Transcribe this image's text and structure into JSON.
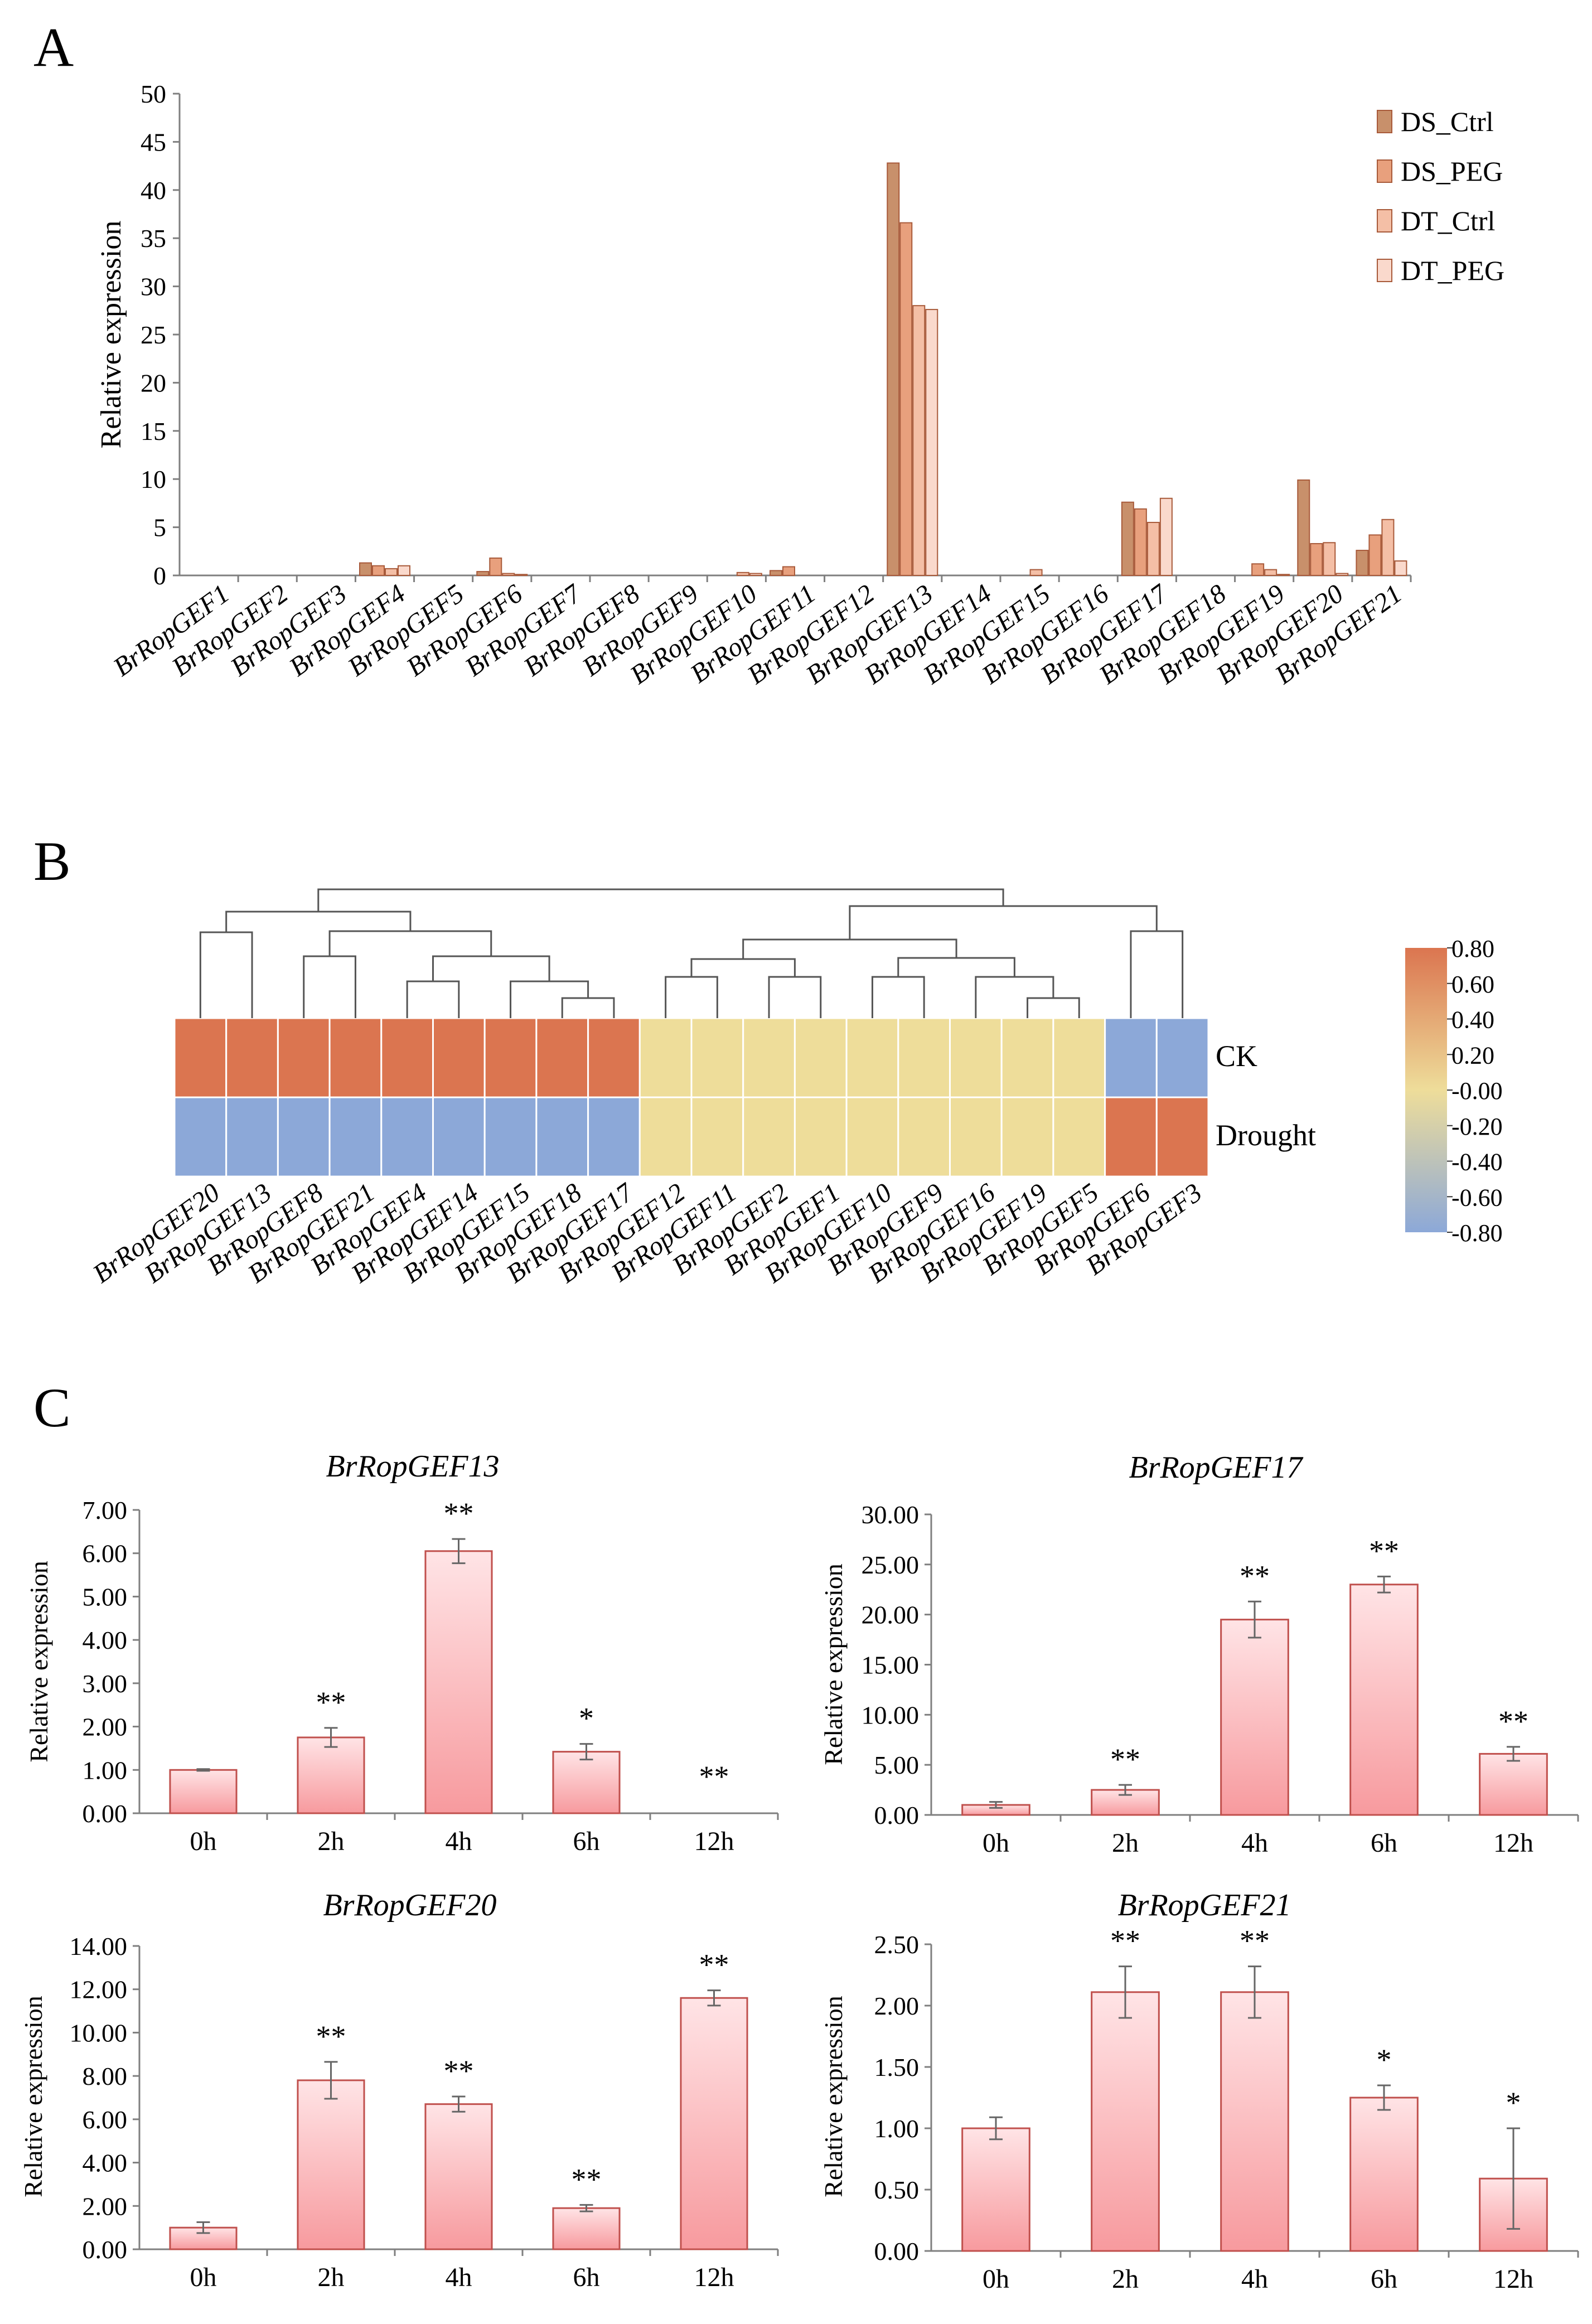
{
  "panels": {
    "a": "A",
    "b": "B",
    "c": "C"
  },
  "colors": {
    "ds_ctrl": "#C8906B",
    "ds_peg": "#E8A07D",
    "dt_ctrl": "#F4BFA6",
    "dt_peg": "#FAD9CC",
    "bar_edge": "#A85A3A",
    "heat_high": "#DB7550",
    "heat_mid": "#EEDD9A",
    "heat_low": "#8CA8D8",
    "qpcr_top": "#FFE4E6",
    "qpcr_bottom": "#F79A9E",
    "qpcr_edge": "#C0504D",
    "error": "#666666"
  },
  "chart_data": [
    {
      "id": "A",
      "type": "bar",
      "ylabel": "Relative expression",
      "ylim": [
        0,
        50
      ],
      "yticks": [
        "0",
        "5",
        "10",
        "15",
        "20",
        "25",
        "30",
        "35",
        "40",
        "45",
        "50"
      ],
      "categories": [
        "BrRopGEF1",
        "BrRopGEF2",
        "BrRopGEF3",
        "BrRopGEF4",
        "BrRopGEF5",
        "BrRopGEF6",
        "BrRopGEF7",
        "BrRopGEF8",
        "BrRopGEF9",
        "BrRopGEF10",
        "BrRopGEF11",
        "BrRopGEF12",
        "BrRopGEF13",
        "BrRopGEF14",
        "BrRopGEF15",
        "BrRopGEF16",
        "BrRopGEF17",
        "BrRopGEF18",
        "BrRopGEF19",
        "BrRopGEF20",
        "BrRopGEF21"
      ],
      "legend_position": "top-right",
      "series": [
        {
          "name": "DS_Ctrl",
          "values": [
            0,
            0,
            0,
            1.3,
            0,
            0.4,
            0,
            0,
            0,
            0,
            0.5,
            0,
            42.8,
            0,
            0,
            0,
            7.6,
            0,
            0,
            9.9,
            2.6
          ]
        },
        {
          "name": "DS_PEG",
          "values": [
            0,
            0,
            0,
            1.0,
            0,
            1.8,
            0,
            0,
            0,
            0,
            0.9,
            0,
            36.6,
            0,
            0,
            0,
            6.9,
            0,
            1.2,
            3.3,
            4.2
          ]
        },
        {
          "name": "DT_Ctrl",
          "values": [
            0,
            0,
            0,
            0.7,
            0,
            0.2,
            0,
            0,
            0,
            0.3,
            0,
            0,
            28.0,
            0,
            0.6,
            0,
            5.5,
            0,
            0.6,
            3.4,
            5.8
          ]
        },
        {
          "name": "DT_PEG",
          "values": [
            0,
            0,
            0,
            1.0,
            0,
            0.1,
            0,
            0,
            0,
            0.2,
            0,
            0,
            27.6,
            0,
            0,
            0,
            8.0,
            0,
            0.1,
            0.2,
            1.5
          ]
        }
      ]
    },
    {
      "id": "B",
      "type": "heatmap",
      "rows": [
        "CK",
        "Drought"
      ],
      "columns": [
        "BrRopGEF20",
        "BrRopGEF13",
        "BrRopGEF8",
        "BrRopGEF21",
        "BrRopGEF4",
        "BrRopGEF14",
        "BrRopGEF15",
        "BrRopGEF18",
        "BrRopGEF17",
        "BrRopGEF12",
        "BrRopGEF11",
        "BrRopGEF2",
        "BrRopGEF1",
        "BrRopGEF10",
        "BrRopGEF9",
        "BrRopGEF16",
        "BrRopGEF19",
        "BrRopGEF5",
        "BrRopGEF6",
        "BrRopGEF3"
      ],
      "values": [
        [
          0.8,
          0.8,
          0.8,
          0.8,
          0.8,
          0.8,
          0.8,
          0.8,
          0.8,
          0,
          0,
          0,
          0,
          0,
          0,
          0,
          0,
          0,
          -0.8,
          -0.8
        ],
        [
          -0.8,
          -0.8,
          -0.8,
          -0.8,
          -0.8,
          -0.8,
          -0.8,
          -0.8,
          -0.8,
          0,
          0,
          0,
          0,
          0,
          0,
          0,
          0,
          0,
          0.8,
          0.8
        ]
      ],
      "color_range": [
        -0.8,
        0.8
      ],
      "colorbar_ticks": [
        "0.80",
        "0.60",
        "0.40",
        "0.20",
        "-0.00",
        "-0.20",
        "-0.40",
        "-0.60",
        "-0.80"
      ]
    },
    {
      "id": "C1",
      "type": "bar",
      "title": "BrRopGEF13",
      "ylabel": "Relative expression",
      "categories": [
        "0h",
        "2h",
        "4h",
        "6h",
        "12h"
      ],
      "values": [
        1.0,
        1.75,
        6.05,
        1.42,
        0.0
      ],
      "errors": [
        0.02,
        0.22,
        0.28,
        0.18,
        0.0
      ],
      "significance": [
        "",
        "**",
        "**",
        "*",
        "**"
      ],
      "ylim": [
        0,
        7
      ],
      "yticks": [
        "0.00",
        "1.00",
        "2.00",
        "3.00",
        "4.00",
        "5.00",
        "6.00",
        "7.00"
      ]
    },
    {
      "id": "C2",
      "type": "bar",
      "title": "BrRopGEF17",
      "ylabel": "Relative expression",
      "categories": [
        "0h",
        "2h",
        "4h",
        "6h",
        "12h"
      ],
      "values": [
        1.0,
        2.5,
        19.5,
        23.0,
        6.1
      ],
      "errors": [
        0.3,
        0.5,
        1.8,
        0.8,
        0.7
      ],
      "significance": [
        "",
        "**",
        "**",
        "**",
        "**"
      ],
      "ylim": [
        0,
        30
      ],
      "yticks": [
        "0.00",
        "5.00",
        "10.00",
        "15.00",
        "20.00",
        "25.00",
        "30.00"
      ]
    },
    {
      "id": "C3",
      "type": "bar",
      "title": "BrRopGEF20",
      "ylabel": "Relative expression",
      "categories": [
        "0h",
        "2h",
        "4h",
        "6h",
        "12h"
      ],
      "values": [
        1.0,
        7.8,
        6.7,
        1.9,
        11.6
      ],
      "errors": [
        0.25,
        0.85,
        0.35,
        0.15,
        0.35
      ],
      "significance": [
        "",
        "**",
        "**",
        "**",
        "**"
      ],
      "ylim": [
        0,
        14
      ],
      "yticks": [
        "0.00",
        "2.00",
        "4.00",
        "6.00",
        "8.00",
        "10.00",
        "12.00",
        "14.00"
      ]
    },
    {
      "id": "C4",
      "type": "bar",
      "title": "BrRopGEF21",
      "ylabel": "Relative expression",
      "categories": [
        "0h",
        "2h",
        "4h",
        "6h",
        "12h"
      ],
      "values": [
        1.0,
        2.11,
        2.11,
        1.25,
        0.59
      ],
      "errors": [
        0.09,
        0.21,
        0.21,
        0.1,
        0.41
      ],
      "significance": [
        "",
        "**",
        "**",
        "*",
        "*"
      ],
      "ylim": [
        0,
        2.5
      ],
      "yticks": [
        "0.00",
        "0.50",
        "1.00",
        "1.50",
        "2.00",
        "2.50"
      ]
    }
  ]
}
